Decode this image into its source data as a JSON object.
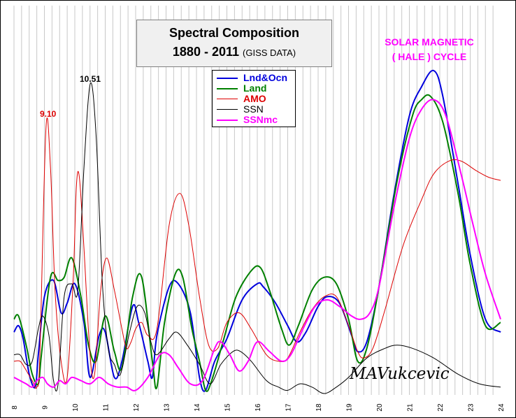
{
  "chart_data": {
    "type": "line",
    "title": "Spectral Composition",
    "subtitle": "1880 - 2011",
    "subtitle_note": "(GISS DATA)",
    "xlim": [
      8,
      24
    ],
    "x_ticks": [
      "8",
      "9",
      "10",
      "11",
      "12",
      "13",
      "14",
      "15",
      "16",
      "17",
      "18",
      "19",
      "20",
      "21",
      "22",
      "23",
      "24"
    ],
    "grid": "vertical",
    "legend": "top-center",
    "annotations": {
      "hale_line1": "SOLAR MAGNETIC",
      "hale_line2": "( HALE ) CYCLE",
      "peak_ssn": "10.51",
      "peak_amo": "9.10",
      "signature": "MAVukcevic"
    },
    "series": [
      {
        "name": "Lnd&Ocn",
        "color": "#0000dd",
        "width": 2,
        "points": [
          [
            8.0,
            0.19
          ],
          [
            8.15,
            0.21
          ],
          [
            8.3,
            0.17
          ],
          [
            8.5,
            0.06
          ],
          [
            8.7,
            0.02
          ],
          [
            8.8,
            0.12
          ],
          [
            9.0,
            0.3
          ],
          [
            9.3,
            0.35
          ],
          [
            9.55,
            0.25
          ],
          [
            9.75,
            0.28
          ],
          [
            10.0,
            0.34
          ],
          [
            10.3,
            0.22
          ],
          [
            10.5,
            0.05
          ],
          [
            10.8,
            0.18
          ],
          [
            11.0,
            0.19
          ],
          [
            11.3,
            0.05
          ],
          [
            11.55,
            0.1
          ],
          [
            11.9,
            0.27
          ],
          [
            12.1,
            0.22
          ],
          [
            12.4,
            0.1
          ],
          [
            12.55,
            0.05
          ],
          [
            12.7,
            0.18
          ],
          [
            13.1,
            0.33
          ],
          [
            13.4,
            0.34
          ],
          [
            13.8,
            0.25
          ],
          [
            14.1,
            0.05
          ],
          [
            14.3,
            0.01
          ],
          [
            14.6,
            0.1
          ],
          [
            15.0,
            0.17
          ],
          [
            15.5,
            0.29
          ],
          [
            16.0,
            0.34
          ],
          [
            16.2,
            0.33
          ],
          [
            16.6,
            0.28
          ],
          [
            17.0,
            0.21
          ],
          [
            17.3,
            0.16
          ],
          [
            17.6,
            0.19
          ],
          [
            18.0,
            0.27
          ],
          [
            18.3,
            0.3
          ],
          [
            18.7,
            0.28
          ],
          [
            19.1,
            0.18
          ],
          [
            19.3,
            0.13
          ],
          [
            19.6,
            0.16
          ],
          [
            20.0,
            0.33
          ],
          [
            20.5,
            0.62
          ],
          [
            21.0,
            0.86
          ],
          [
            21.4,
            0.95
          ],
          [
            21.8,
            1.0
          ],
          [
            22.1,
            0.92
          ],
          [
            22.6,
            0.65
          ],
          [
            23.0,
            0.43
          ],
          [
            23.5,
            0.23
          ],
          [
            24.0,
            0.19
          ]
        ]
      },
      {
        "name": "Land",
        "color": "#008000",
        "width": 2,
        "points": [
          [
            8.0,
            0.23
          ],
          [
            8.15,
            0.24
          ],
          [
            8.4,
            0.15
          ],
          [
            8.6,
            0.06
          ],
          [
            8.8,
            0.03
          ],
          [
            8.9,
            0.12
          ],
          [
            9.2,
            0.36
          ],
          [
            9.45,
            0.35
          ],
          [
            9.65,
            0.36
          ],
          [
            9.9,
            0.42
          ],
          [
            10.2,
            0.3
          ],
          [
            10.45,
            0.15
          ],
          [
            10.7,
            0.1
          ],
          [
            11.0,
            0.24
          ],
          [
            11.3,
            0.13
          ],
          [
            11.55,
            0.08
          ],
          [
            11.9,
            0.3
          ],
          [
            12.2,
            0.36
          ],
          [
            12.55,
            0.1
          ],
          [
            12.7,
            0.02
          ],
          [
            12.95,
            0.22
          ],
          [
            13.3,
            0.37
          ],
          [
            13.55,
            0.36
          ],
          [
            13.85,
            0.2
          ],
          [
            14.1,
            0.1
          ],
          [
            14.3,
            0.01
          ],
          [
            14.5,
            0.04
          ],
          [
            14.9,
            0.17
          ],
          [
            15.3,
            0.3
          ],
          [
            15.8,
            0.38
          ],
          [
            16.1,
            0.39
          ],
          [
            16.4,
            0.32
          ],
          [
            16.8,
            0.2
          ],
          [
            17.05,
            0.15
          ],
          [
            17.35,
            0.21
          ],
          [
            17.8,
            0.32
          ],
          [
            18.2,
            0.36
          ],
          [
            18.6,
            0.34
          ],
          [
            19.0,
            0.23
          ],
          [
            19.3,
            0.1
          ],
          [
            19.6,
            0.14
          ],
          [
            20.0,
            0.33
          ],
          [
            20.6,
            0.66
          ],
          [
            21.1,
            0.86
          ],
          [
            21.4,
            0.91
          ],
          [
            21.7,
            0.92
          ],
          [
            22.1,
            0.84
          ],
          [
            22.6,
            0.62
          ],
          [
            23.0,
            0.4
          ],
          [
            23.5,
            0.21
          ],
          [
            24.0,
            0.22
          ]
        ]
      },
      {
        "name": "AMO",
        "color": "#dd0000",
        "width": 1,
        "points": [
          [
            8.0,
            0.1
          ],
          [
            8.2,
            0.1
          ],
          [
            8.35,
            0.08
          ],
          [
            8.6,
            0.04
          ],
          [
            8.75,
            0.02
          ],
          [
            8.85,
            0.12
          ],
          [
            9.05,
            0.82
          ],
          [
            9.2,
            0.7
          ],
          [
            9.35,
            0.32
          ],
          [
            9.55,
            0.1
          ],
          [
            9.75,
            0.05
          ],
          [
            9.95,
            0.36
          ],
          [
            10.05,
            0.64
          ],
          [
            10.15,
            0.67
          ],
          [
            10.3,
            0.45
          ],
          [
            10.5,
            0.12
          ],
          [
            10.65,
            0.06
          ],
          [
            10.85,
            0.32
          ],
          [
            11.05,
            0.42
          ],
          [
            11.3,
            0.32
          ],
          [
            11.55,
            0.2
          ],
          [
            11.7,
            0.14
          ],
          [
            11.85,
            0.16
          ],
          [
            12.0,
            0.2
          ],
          [
            12.2,
            0.22
          ],
          [
            12.4,
            0.18
          ],
          [
            12.7,
            0.2
          ],
          [
            13.1,
            0.52
          ],
          [
            13.45,
            0.62
          ],
          [
            13.75,
            0.52
          ],
          [
            14.1,
            0.3
          ],
          [
            14.4,
            0.15
          ],
          [
            14.7,
            0.14
          ],
          [
            15.0,
            0.22
          ],
          [
            15.4,
            0.25
          ],
          [
            15.8,
            0.2
          ],
          [
            16.3,
            0.12
          ],
          [
            16.7,
            0.1
          ],
          [
            17.0,
            0.11
          ],
          [
            17.4,
            0.19
          ],
          [
            17.8,
            0.26
          ],
          [
            18.2,
            0.3
          ],
          [
            18.6,
            0.3
          ],
          [
            19.0,
            0.21
          ],
          [
            19.3,
            0.13
          ],
          [
            19.5,
            0.11
          ],
          [
            19.8,
            0.14
          ],
          [
            20.2,
            0.26
          ],
          [
            20.8,
            0.46
          ],
          [
            21.4,
            0.6
          ],
          [
            21.8,
            0.68
          ],
          [
            22.3,
            0.72
          ],
          [
            22.7,
            0.72
          ],
          [
            23.2,
            0.69
          ],
          [
            23.6,
            0.67
          ],
          [
            24.0,
            0.66
          ]
        ]
      },
      {
        "name": "SSN",
        "color": "#000000",
        "width": 1,
        "points": [
          [
            8.0,
            0.12
          ],
          [
            8.2,
            0.12
          ],
          [
            8.4,
            0.09
          ],
          [
            8.6,
            0.1
          ],
          [
            8.8,
            0.2
          ],
          [
            8.95,
            0.24
          ],
          [
            9.15,
            0.18
          ],
          [
            9.3,
            0.04
          ],
          [
            9.45,
            0.03
          ],
          [
            9.65,
            0.3
          ],
          [
            9.9,
            0.34
          ],
          [
            10.1,
            0.32
          ],
          [
            10.3,
            0.7
          ],
          [
            10.51,
            0.96
          ],
          [
            10.7,
            0.8
          ],
          [
            10.9,
            0.35
          ],
          [
            11.1,
            0.14
          ],
          [
            11.3,
            0.09
          ],
          [
            11.5,
            0.06
          ],
          [
            11.8,
            0.19
          ],
          [
            12.05,
            0.27
          ],
          [
            12.3,
            0.25
          ],
          [
            12.5,
            0.16
          ],
          [
            12.7,
            0.12
          ],
          [
            13.1,
            0.17
          ],
          [
            13.35,
            0.19
          ],
          [
            13.7,
            0.15
          ],
          [
            14.1,
            0.09
          ],
          [
            14.45,
            0.03
          ],
          [
            14.8,
            0.09
          ],
          [
            15.2,
            0.13
          ],
          [
            15.45,
            0.13
          ],
          [
            15.8,
            0.1
          ],
          [
            16.3,
            0.04
          ],
          [
            16.7,
            0.02
          ],
          [
            17.0,
            0.01
          ],
          [
            17.4,
            0.03
          ],
          [
            17.8,
            0.02
          ],
          [
            18.2,
            0.0
          ],
          [
            18.6,
            0.02
          ],
          [
            19.0,
            0.05
          ],
          [
            19.6,
            0.11
          ],
          [
            20.2,
            0.14
          ],
          [
            20.6,
            0.15
          ],
          [
            21.1,
            0.14
          ],
          [
            21.8,
            0.11
          ],
          [
            22.6,
            0.06
          ],
          [
            23.3,
            0.03
          ],
          [
            24.0,
            0.02
          ]
        ]
      },
      {
        "name": "SSNmc",
        "color": "#ff00ff",
        "width": 2,
        "points": [
          [
            8.0,
            0.05
          ],
          [
            8.2,
            0.04
          ],
          [
            8.4,
            0.03
          ],
          [
            8.6,
            0.02
          ],
          [
            8.75,
            0.04
          ],
          [
            8.95,
            0.05
          ],
          [
            9.1,
            0.03
          ],
          [
            9.3,
            0.02
          ],
          [
            9.5,
            0.04
          ],
          [
            9.7,
            0.03
          ],
          [
            9.9,
            0.05
          ],
          [
            10.2,
            0.04
          ],
          [
            10.5,
            0.03
          ],
          [
            10.8,
            0.05
          ],
          [
            11.1,
            0.03
          ],
          [
            11.4,
            0.02
          ],
          [
            11.7,
            0.02
          ],
          [
            12.0,
            0.01
          ],
          [
            12.4,
            0.05
          ],
          [
            12.8,
            0.12
          ],
          [
            13.1,
            0.12
          ],
          [
            13.4,
            0.08
          ],
          [
            13.8,
            0.03
          ],
          [
            14.2,
            0.04
          ],
          [
            14.6,
            0.14
          ],
          [
            14.8,
            0.16
          ],
          [
            15.1,
            0.12
          ],
          [
            15.4,
            0.07
          ],
          [
            15.7,
            0.1
          ],
          [
            16.0,
            0.16
          ],
          [
            16.4,
            0.13
          ],
          [
            16.8,
            0.1
          ],
          [
            17.1,
            0.12
          ],
          [
            17.5,
            0.2
          ],
          [
            17.9,
            0.27
          ],
          [
            18.3,
            0.29
          ],
          [
            18.7,
            0.27
          ],
          [
            19.1,
            0.24
          ],
          [
            19.4,
            0.23
          ],
          [
            19.7,
            0.25
          ],
          [
            20.0,
            0.33
          ],
          [
            20.5,
            0.58
          ],
          [
            21.0,
            0.79
          ],
          [
            21.4,
            0.88
          ],
          [
            21.8,
            0.91
          ],
          [
            22.2,
            0.86
          ],
          [
            22.7,
            0.68
          ],
          [
            23.1,
            0.52
          ],
          [
            23.5,
            0.37
          ],
          [
            24.0,
            0.23
          ]
        ]
      }
    ]
  }
}
